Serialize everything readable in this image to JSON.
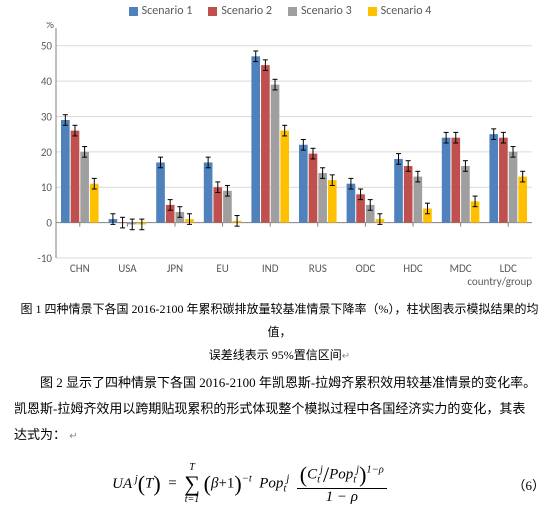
{
  "chart": {
    "type": "bar",
    "title": "",
    "legend": [
      {
        "label": "Scenario 1",
        "color": "#4f81bd"
      },
      {
        "label": "Scenario 2",
        "color": "#c0504d"
      },
      {
        "label": "Scenario 3",
        "color": "#9f9f9f"
      },
      {
        "label": "Scenario 4",
        "color": "#ffc000"
      }
    ],
    "categories": [
      "CHN",
      "USA",
      "JPN",
      "EU",
      "IND",
      "RUS",
      "ODC",
      "HDC",
      "MDC",
      "LDC"
    ],
    "y": {
      "min": -10,
      "max": 55,
      "step": 10,
      "ticks": [
        -10,
        0,
        10,
        20,
        30,
        40,
        50
      ],
      "label": "%"
    },
    "x_label": "country/group",
    "series": [
      {
        "name": "Scenario 1",
        "color": "#4f81bd",
        "values": [
          29,
          1,
          17,
          17,
          47,
          22,
          11,
          18,
          24,
          25
        ],
        "err": [
          1.5,
          1.5,
          1.5,
          1.5,
          1.5,
          1.5,
          1.5,
          1.5,
          1.5,
          1.5
        ]
      },
      {
        "name": "Scenario 2",
        "color": "#c0504d",
        "values": [
          26,
          0,
          5,
          10,
          44.5,
          19.5,
          8,
          16,
          24,
          24
        ],
        "err": [
          1.5,
          1.5,
          1.5,
          1.5,
          1.5,
          1.5,
          1.5,
          1.5,
          1.5,
          1.5
        ]
      },
      {
        "name": "Scenario 3",
        "color": "#9f9f9f",
        "values": [
          20,
          -0.5,
          3,
          9,
          39,
          14,
          5,
          13,
          16,
          20
        ],
        "err": [
          1.5,
          1.5,
          1.5,
          1.5,
          1.5,
          1.5,
          1.5,
          1.5,
          1.5,
          1.5
        ]
      },
      {
        "name": "Scenario 4",
        "color": "#ffc000",
        "values": [
          11,
          -0.5,
          1,
          0.5,
          26,
          12,
          1,
          4,
          6,
          13
        ],
        "err": [
          1.5,
          1.5,
          1.5,
          1.5,
          1.5,
          1.5,
          1.5,
          1.5,
          1.5,
          1.5
        ]
      }
    ],
    "background_color": "#ffffff",
    "grid_color": "#d9d9d9",
    "axis_color": "#808080",
    "tick_fontsize": 11,
    "tick_color": "#595959",
    "bar_gap": 1,
    "group_gap": 10
  },
  "caption1_l1": "图 1 四种情景下各国 2016-2100 年累积碳排放量较基准情景下降率（%），柱状图表示模拟结果的均值，",
  "caption1_l2": "误差线表示 95%置信区间",
  "para2a": "图 2 显示了四种情景下各国 2016-2100 年凯恩斯-拉姆齐累积效用较基准情景的变化率。",
  "para2b": "凯恩斯-拉姆齐效用以跨期贴现累积的形式体现整个模拟过程中各国经济实力的变化，其表",
  "para2c": "达式为：",
  "eq_num": "（6）",
  "marker": "↵"
}
